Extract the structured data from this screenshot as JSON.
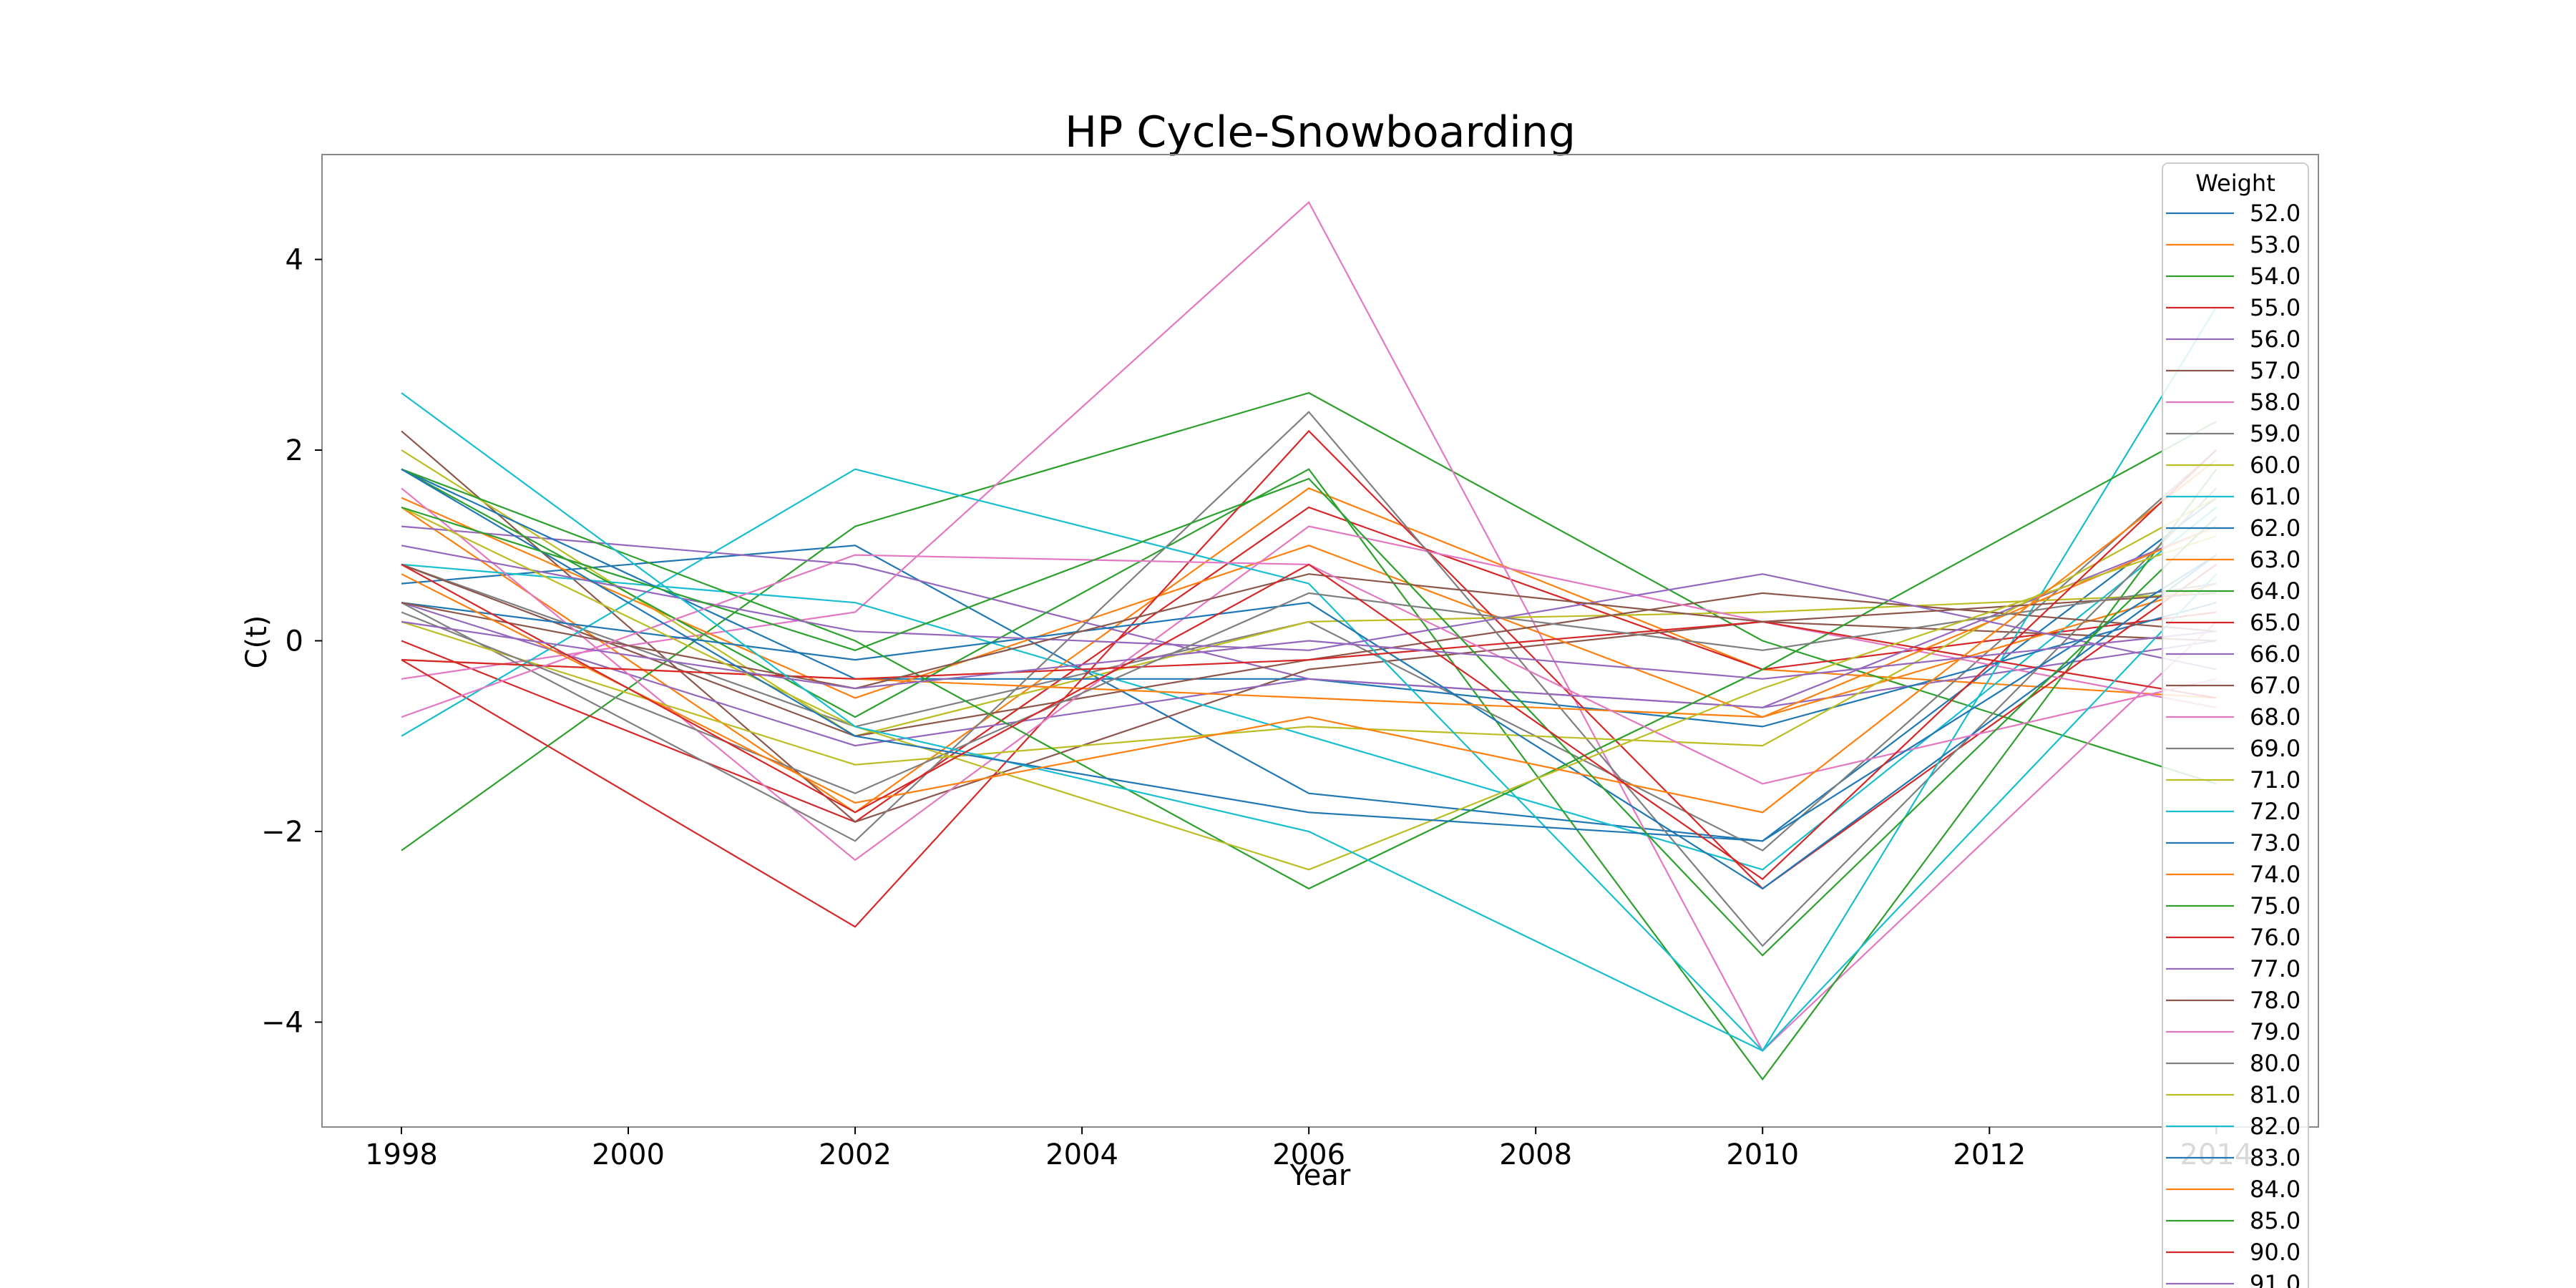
{
  "chart_data": {
    "type": "line",
    "title": "HP Cycle-Snowboarding",
    "xlabel": "Year",
    "ylabel": "C(t)",
    "x": [
      1998,
      2002,
      2006,
      2010,
      2014
    ],
    "xlim": [
      1997.3,
      2014.9
    ],
    "ylim": [
      -5.1,
      5.1
    ],
    "xticks": [
      1998,
      2000,
      2002,
      2004,
      2006,
      2008,
      2010,
      2012,
      2014
    ],
    "yticks": [
      4,
      2,
      0,
      -2,
      -4
    ],
    "grid": false,
    "legend": {
      "title": "Weight",
      "placement": "right"
    },
    "colors": [
      "#1f77b4",
      "#ff7f0e",
      "#2ca02c",
      "#d62728",
      "#9467bd",
      "#8c564b",
      "#e377c2",
      "#7f7f7f",
      "#bcbd22",
      "#17becf"
    ],
    "series": [
      {
        "name": "52.0",
        "values": [
          0.6,
          1.0,
          -1.6,
          -2.1,
          1.5
        ]
      },
      {
        "name": "53.0",
        "values": [
          1.4,
          -1.8,
          1.6,
          -0.3,
          -0.6
        ]
      },
      {
        "name": "54.0",
        "values": [
          -2.2,
          1.2,
          2.6,
          0.0,
          -1.5
        ]
      },
      {
        "name": "55.0",
        "values": [
          0.0,
          -1.9,
          1.4,
          -0.3,
          0.3
        ]
      },
      {
        "name": "56.0",
        "values": [
          1.2,
          0.8,
          -0.4,
          -0.7,
          0.0
        ]
      },
      {
        "name": "57.0",
        "values": [
          2.2,
          -1.9,
          -0.3,
          0.2,
          0.0
        ]
      },
      {
        "name": "58.0",
        "values": [
          -0.4,
          0.3,
          4.6,
          -4.3,
          0.2
        ]
      },
      {
        "name": "59.0",
        "values": [
          0.8,
          -0.9,
          0.2,
          -2.2,
          2.0
        ]
      },
      {
        "name": "60.0",
        "values": [
          2.0,
          -1.0,
          0.2,
          0.3,
          0.5
        ]
      },
      {
        "name": "61.0",
        "values": [
          0.8,
          0.4,
          -1.0,
          -2.4,
          1.4
        ]
      },
      {
        "name": "62.0",
        "values": [
          1.8,
          -0.4,
          -0.4,
          -0.9,
          0.4
        ]
      },
      {
        "name": "63.0",
        "values": [
          1.5,
          -0.6,
          1.0,
          -0.8,
          0.6
        ]
      },
      {
        "name": "64.0",
        "values": [
          1.8,
          -0.8,
          1.8,
          -4.6,
          1.8
        ]
      },
      {
        "name": "65.0",
        "values": [
          -0.2,
          -3.0,
          2.2,
          -2.6,
          0.8
        ]
      },
      {
        "name": "66.0",
        "values": [
          0.4,
          -1.1,
          -0.4,
          -0.7,
          1.2
        ]
      },
      {
        "name": "67.0",
        "values": [
          0.8,
          -1.0,
          -0.2,
          0.5,
          0.1
        ]
      },
      {
        "name": "68.0",
        "values": [
          1.6,
          -2.3,
          1.2,
          0.2,
          -0.7
        ]
      },
      {
        "name": "69.0",
        "values": [
          0.4,
          -2.1,
          2.4,
          -3.2,
          1.6
        ]
      },
      {
        "name": "71.0",
        "values": [
          0.2,
          -1.3,
          -0.9,
          -1.1,
          1.5
        ]
      },
      {
        "name": "72.0",
        "values": [
          -1.0,
          1.8,
          0.6,
          -4.3,
          3.5
        ]
      },
      {
        "name": "73.0",
        "values": [
          0.4,
          -0.2,
          0.4,
          -2.6,
          0.9
        ]
      },
      {
        "name": "74.0",
        "values": [
          -0.2,
          -0.4,
          -0.6,
          -0.8,
          1.2
        ]
      },
      {
        "name": "75.0",
        "values": [
          1.8,
          0.0,
          -2.6,
          -0.3,
          2.3
        ]
      },
      {
        "name": "76.0",
        "values": [
          -0.2,
          -0.4,
          -0.2,
          0.2,
          -0.6
        ]
      },
      {
        "name": "77.0",
        "values": [
          1.0,
          0.1,
          -0.1,
          0.7,
          -0.3
        ]
      },
      {
        "name": "78.0",
        "values": [
          0.4,
          -0.5,
          0.7,
          0.2,
          0.5
        ]
      },
      {
        "name": "79.0",
        "values": [
          -0.8,
          0.9,
          0.8,
          -1.5,
          -0.4
        ]
      },
      {
        "name": "80.0",
        "values": [
          0.3,
          -1.6,
          0.5,
          -0.1,
          0.6
        ]
      },
      {
        "name": "81.0",
        "values": [
          1.4,
          -0.9,
          -2.4,
          -0.5,
          1.1
        ]
      },
      {
        "name": "82.0",
        "values": [
          2.6,
          -0.9,
          -2.0,
          -4.3,
          0.7
        ]
      },
      {
        "name": "83.0",
        "values": [
          1.8,
          -1.0,
          -1.8,
          -2.1,
          0.9
        ]
      },
      {
        "name": "84.0",
        "values": [
          0.7,
          -1.7,
          -0.8,
          -1.8,
          1.9
        ]
      },
      {
        "name": "85.0",
        "values": [
          1.4,
          -0.1,
          1.7,
          -3.3,
          1.3
        ]
      },
      {
        "name": "90.0",
        "values": [
          0.8,
          -1.8,
          0.8,
          -2.5,
          2.0
        ]
      },
      {
        "name": "91.0",
        "values": [
          0.2,
          -0.5,
          0.0,
          -0.4,
          0.1
        ]
      }
    ]
  }
}
